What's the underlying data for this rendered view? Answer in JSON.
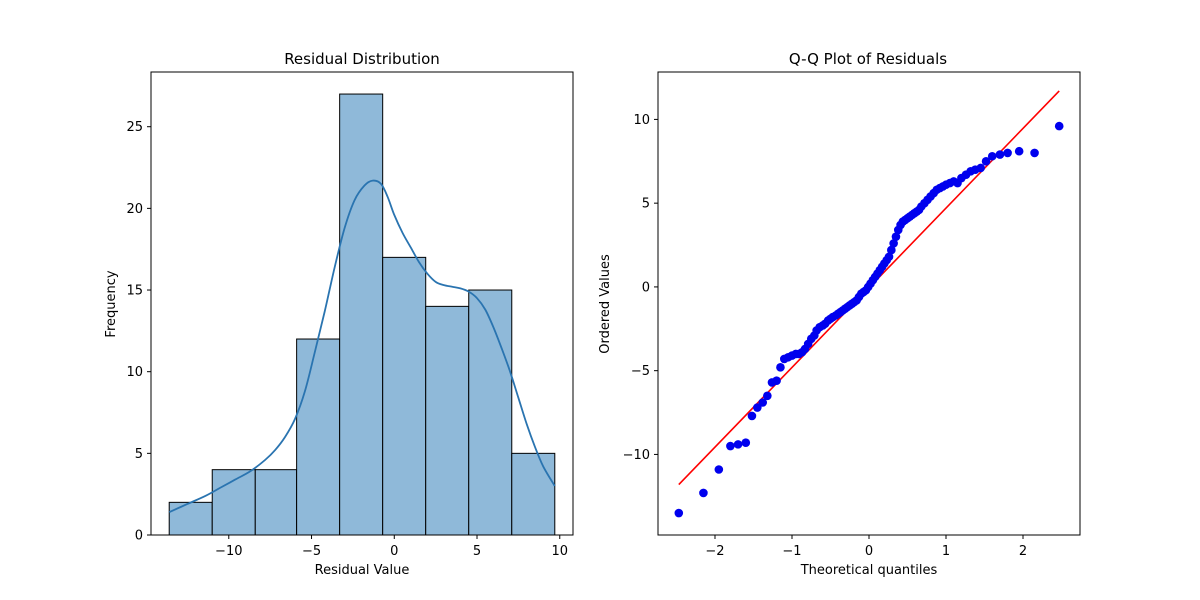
{
  "chart_data": [
    {
      "type": "bar",
      "title": "Residual Distribution",
      "xlabel": "Residual Value",
      "ylabel": "Frequency",
      "xlim": [
        -14.7,
        10.8
      ],
      "ylim": [
        0,
        28.35
      ],
      "xticks": [
        -10,
        -5,
        0,
        5,
        10
      ],
      "xtick_labels": [
        "−10",
        "−5",
        "0",
        "5",
        "10"
      ],
      "yticks": [
        0,
        5,
        10,
        15,
        20,
        25
      ],
      "ytick_labels": [
        "0",
        "5",
        "10",
        "15",
        "20",
        "25"
      ],
      "bins": [
        {
          "left": -13.6,
          "right": -11.0,
          "count": 2
        },
        {
          "left": -11.0,
          "right": -8.4,
          "count": 4
        },
        {
          "left": -8.4,
          "right": -5.9,
          "count": 4
        },
        {
          "left": -5.9,
          "right": -3.3,
          "count": 12
        },
        {
          "left": -3.3,
          "right": -0.7,
          "count": 27
        },
        {
          "left": -0.7,
          "right": 1.9,
          "count": 17
        },
        {
          "left": 1.9,
          "right": 4.5,
          "count": 14
        },
        {
          "left": 4.5,
          "right": 7.1,
          "count": 15
        },
        {
          "left": 7.1,
          "right": 9.7,
          "count": 5
        }
      ],
      "kde": {
        "x": [
          -13.6,
          -12.5,
          -11.4,
          -10.5,
          -9.6,
          -8.7,
          -7.8,
          -7.2,
          -6.6,
          -6.0,
          -5.4,
          -4.8,
          -4.2,
          -3.6,
          -3.0,
          -2.4,
          -1.8,
          -1.3,
          -0.8,
          -0.4,
          0.0,
          0.5,
          1.0,
          1.5,
          2.0,
          2.5,
          3.0,
          3.5,
          4.0,
          4.5,
          5.0,
          5.5,
          6.0,
          6.5,
          7.0,
          7.5,
          8.0,
          8.5,
          9.0,
          9.7
        ],
        "y": [
          1.4,
          1.9,
          2.4,
          2.9,
          3.4,
          3.9,
          4.6,
          5.2,
          6.0,
          7.1,
          8.8,
          11.2,
          13.7,
          16.4,
          18.8,
          20.5,
          21.4,
          21.7,
          21.5,
          20.7,
          19.6,
          18.5,
          17.6,
          16.7,
          16.0,
          15.5,
          15.3,
          15.2,
          15.1,
          14.9,
          14.5,
          13.8,
          12.7,
          11.4,
          10.0,
          8.4,
          6.8,
          5.4,
          4.2,
          3.0
        ]
      },
      "colors": {
        "bar_fill": "#8fb9d9",
        "bar_edge": "#000000",
        "kde_line": "#2a74b0"
      }
    },
    {
      "type": "scatter",
      "title": "Q-Q Plot of Residuals",
      "xlabel": "Theoretical quantiles",
      "ylabel": "Ordered Values",
      "xlim": [
        -2.74,
        2.74
      ],
      "ylim": [
        -14.81,
        12.83
      ],
      "xticks": [
        -2,
        -1,
        0,
        1,
        2
      ],
      "xtick_labels": [
        "−2",
        "−1",
        "0",
        "1",
        "2"
      ],
      "yticks": [
        -10,
        -5,
        0,
        5,
        10
      ],
      "ytick_labels": [
        "−10",
        "−5",
        "0",
        "5",
        "10"
      ],
      "points": {
        "x": [
          -2.47,
          -2.15,
          -1.95,
          -1.8,
          -1.7,
          -1.6,
          -1.52,
          -1.45,
          -1.38,
          -1.32,
          -1.26,
          -1.2,
          -1.15,
          -1.1,
          -1.05,
          -1.0,
          -0.95,
          -0.91,
          -0.87,
          -0.83,
          -0.79,
          -0.75,
          -0.71,
          -0.68,
          -0.64,
          -0.6,
          -0.57,
          -0.53,
          -0.5,
          -0.47,
          -0.43,
          -0.4,
          -0.37,
          -0.34,
          -0.31,
          -0.28,
          -0.25,
          -0.22,
          -0.19,
          -0.16,
          -0.13,
          -0.1,
          -0.07,
          -0.04,
          -0.01,
          0.02,
          0.05,
          0.08,
          0.11,
          0.14,
          0.17,
          0.2,
          0.23,
          0.26,
          0.29,
          0.32,
          0.35,
          0.38,
          0.41,
          0.44,
          0.47,
          0.5,
          0.53,
          0.56,
          0.59,
          0.62,
          0.65,
          0.68,
          0.72,
          0.76,
          0.8,
          0.84,
          0.88,
          0.92,
          0.96,
          1.0,
          1.05,
          1.1,
          1.15,
          1.2,
          1.26,
          1.32,
          1.38,
          1.45,
          1.52,
          1.6,
          1.7,
          1.8,
          1.95,
          2.15,
          2.47
        ],
        "y": [
          -13.5,
          -12.3,
          -10.9,
          -9.5,
          -9.4,
          -9.3,
          -7.7,
          -7.2,
          -6.9,
          -6.5,
          -5.7,
          -5.6,
          -4.8,
          -4.3,
          -4.2,
          -4.1,
          -4.0,
          -4.0,
          -3.9,
          -3.7,
          -3.4,
          -3.1,
          -2.9,
          -2.6,
          -2.4,
          -2.3,
          -2.2,
          -2.0,
          -1.9,
          -1.8,
          -1.7,
          -1.6,
          -1.5,
          -1.4,
          -1.3,
          -1.2,
          -1.1,
          -1.0,
          -0.9,
          -0.8,
          -0.6,
          -0.4,
          -0.3,
          -0.2,
          0.0,
          0.2,
          0.4,
          0.6,
          0.8,
          1.0,
          1.2,
          1.4,
          1.6,
          1.8,
          2.2,
          2.6,
          3.0,
          3.4,
          3.7,
          3.9,
          4.0,
          4.1,
          4.2,
          4.3,
          4.4,
          4.5,
          4.6,
          4.8,
          5.0,
          5.2,
          5.4,
          5.6,
          5.8,
          5.9,
          6.0,
          6.1,
          6.2,
          6.3,
          6.2,
          6.5,
          6.7,
          6.9,
          7.0,
          7.1,
          7.5,
          7.8,
          7.9,
          8.0,
          8.1,
          8.0,
          9.6
        ]
      },
      "fit_line": {
        "x": [
          -2.47,
          2.47
        ],
        "y": [
          -11.8,
          11.7
        ]
      },
      "colors": {
        "points": "#0000ee",
        "fit_line": "#ff0000"
      }
    }
  ]
}
